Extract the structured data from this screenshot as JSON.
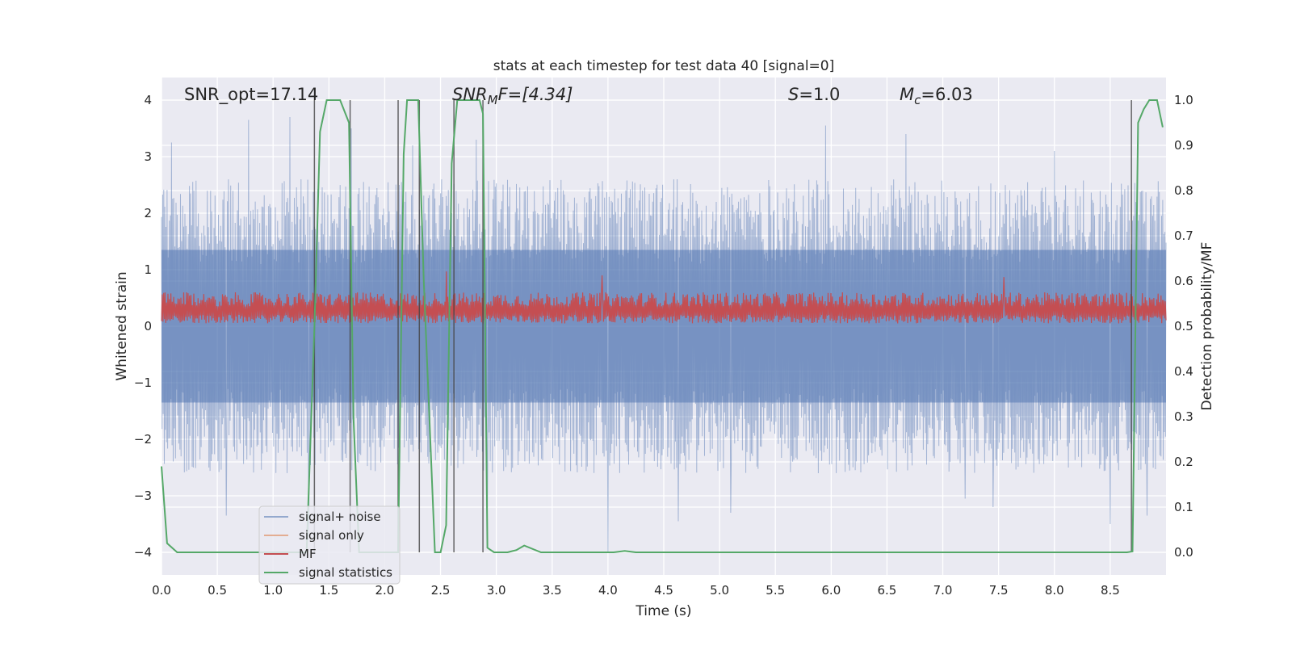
{
  "chart_data": {
    "type": "line",
    "title": "stats at each timestep for test data 40 [signal=0]",
    "xlabel": "Time (s)",
    "ylabel": "Whitened strain",
    "ylabel_right": "Detection probability/MF",
    "xlim": [
      0.0,
      9.0
    ],
    "ylim": [
      -4.4,
      4.4
    ],
    "ylim_right": [
      -0.05,
      1.05
    ],
    "x_ticks": [
      0.0,
      0.5,
      1.0,
      1.5,
      2.0,
      2.5,
      3.0,
      3.5,
      4.0,
      4.5,
      5.0,
      5.5,
      6.0,
      6.5,
      7.0,
      7.5,
      8.0,
      8.5
    ],
    "x_tick_labels": [
      "0.0",
      "0.5",
      "1.0",
      "1.5",
      "2.0",
      "2.5",
      "3.0",
      "3.5",
      "4.0",
      "4.5",
      "5.0",
      "5.5",
      "6.0",
      "6.5",
      "7.0",
      "7.5",
      "8.0",
      "8.5"
    ],
    "y_ticks": [
      4,
      3,
      2,
      1,
      0,
      -1,
      -2,
      -3,
      -4
    ],
    "y_tick_labels": [
      "4",
      "3",
      "2",
      "1",
      "0",
      "−1",
      "−2",
      "−3",
      "−4"
    ],
    "y_ticks_right": [
      1.0,
      0.9,
      0.8,
      0.7,
      0.6,
      0.5,
      0.4,
      0.3,
      0.2,
      0.1,
      0.0
    ],
    "y_tick_labels_right": [
      "1.0",
      "0.9",
      "0.8",
      "0.7",
      "0.6",
      "0.5",
      "0.4",
      "0.3",
      "0.2",
      "0.1",
      "0.0"
    ],
    "grid": true,
    "legend_placement": "lower-left",
    "annotations": {
      "snr_opt": "SNR_opt=17.14",
      "snr_mf_sym": "SNR",
      "snr_mf_sub": "M",
      "snr_mf_rest": "F=[4.34]",
      "s_sym": "S",
      "s_rest": "=1.0",
      "mc_sym": "M",
      "mc_sub": "c",
      "mc_rest": "=6.03"
    },
    "noise_envelope": {
      "description_values": "approximate envelope of whitened strain noise",
      "upper_typical": 2.0,
      "lower_typical": -2.0,
      "upper_peaks": [
        [
          0.09,
          3.25
        ],
        [
          0.78,
          3.65
        ],
        [
          1.15,
          3.7
        ],
        [
          1.7,
          3.5
        ],
        [
          2.25,
          3.2
        ],
        [
          2.82,
          3.3
        ],
        [
          5.95,
          3.55
        ],
        [
          6.67,
          3.4
        ],
        [
          8.0,
          3.1
        ],
        [
          8.5,
          3.05
        ]
      ],
      "lower_peaks": [
        [
          0.58,
          -3.35
        ],
        [
          1.32,
          -3.6
        ],
        [
          2.92,
          -3.2
        ],
        [
          4.63,
          -3.45
        ],
        [
          5.1,
          -3.3
        ],
        [
          7.2,
          -3.05
        ],
        [
          7.45,
          -3.2
        ],
        [
          8.5,
          -3.5
        ],
        [
          8.83,
          -3.35
        ],
        [
          4.0,
          -4.0
        ]
      ]
    },
    "mf_band": {
      "lower": 0.05,
      "upper_typical": 0.6,
      "peaks": [
        [
          2.55,
          0.97
        ],
        [
          3.95,
          0.9
        ],
        [
          7.55,
          0.87
        ]
      ]
    },
    "vertical_lines_x": [
      1.37,
      1.69,
      2.12,
      2.31,
      2.62,
      2.88,
      8.69
    ],
    "series": [
      {
        "name": "signal+ noise",
        "color": "#4c72b0",
        "kind": "noise_band"
      },
      {
        "name": "signal only",
        "color": "#dd8452",
        "kind": "none"
      },
      {
        "name": "MF",
        "color": "#c44e52",
        "kind": "mf_band"
      },
      {
        "name": "signal statistics",
        "color": "#55a868",
        "axis": "right",
        "x": [
          0.0,
          0.05,
          0.14,
          1.3,
          1.37,
          1.42,
          1.48,
          1.6,
          1.68,
          1.72,
          1.77,
          2.12,
          2.17,
          2.2,
          2.3,
          2.35,
          2.45,
          2.5,
          2.55,
          2.6,
          2.65,
          2.69,
          2.85,
          2.88,
          2.92,
          2.98,
          3.1,
          3.18,
          3.25,
          3.4,
          4.05,
          4.15,
          4.25,
          8.65,
          8.7,
          8.75,
          8.8,
          8.85,
          8.92,
          8.97
        ],
        "y": [
          0.19,
          0.02,
          0.0,
          0.0,
          0.5,
          0.93,
          1.0,
          1.0,
          0.95,
          0.3,
          0.0,
          0.0,
          0.88,
          1.0,
          1.0,
          0.6,
          0.0,
          0.0,
          0.06,
          0.86,
          1.0,
          1.0,
          1.0,
          0.97,
          0.01,
          0.0,
          0.0,
          0.005,
          0.015,
          0.0,
          0.0,
          0.003,
          0.0,
          0.0,
          0.002,
          0.95,
          0.98,
          1.0,
          1.0,
          0.94
        ]
      }
    ]
  }
}
